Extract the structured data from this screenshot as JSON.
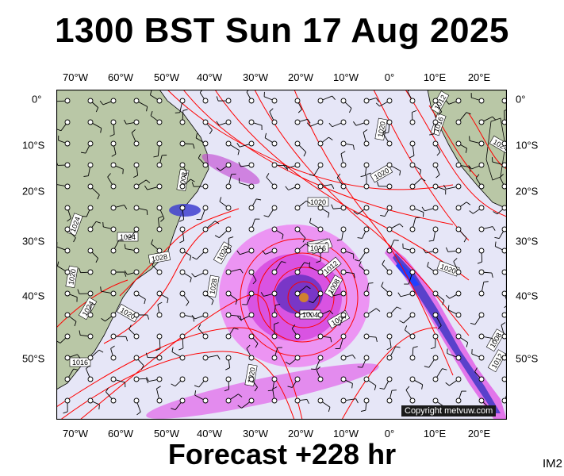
{
  "title": "1300 BST Sun 17 Aug 2025",
  "forecast_label": "Forecast +228 hr",
  "image_code": "IM2",
  "copyright": "Copyright metvuw.com",
  "longitude_labels": [
    "70°W",
    "60°W",
    "50°W",
    "40°W",
    "30°W",
    "20°W",
    "10°W",
    "0°",
    "10°E",
    "20°E"
  ],
  "latitude_labels": [
    "0°",
    "10°S",
    "20°S",
    "30°S",
    "40°S",
    "50°S"
  ],
  "isobar_labels": [
    "1012",
    "1016",
    "1020",
    "1016",
    "1020",
    "1020",
    "1024",
    "1024",
    "1028",
    "1028",
    "1020",
    "1024",
    "1020",
    "1016",
    "1012",
    "1008",
    "1016",
    "1004",
    "1004",
    "1008",
    "1020",
    "1024",
    "1016",
    "1020",
    "1020",
    "1008",
    "1012"
  ],
  "colors": {
    "ocean": "#e6e6f7",
    "land": "#b9c7a6",
    "isobar": "#ff0000",
    "coastline": "#000000",
    "rain_light": "#f050f0",
    "rain_medium": "#c000c0",
    "rain_heavy": "#6030c0",
    "rain_extreme": "#2040ff"
  }
}
